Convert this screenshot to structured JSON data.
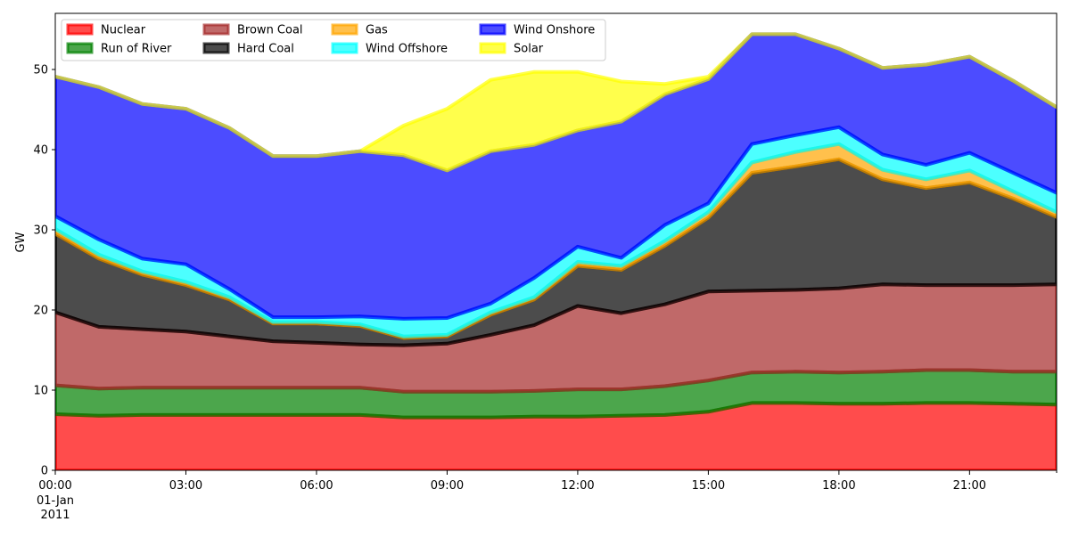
{
  "chart_data": {
    "type": "area",
    "stacked": true,
    "ylabel": "GW",
    "xlabel": "",
    "ylim": [
      0,
      57
    ],
    "y_ticks": [
      0,
      10,
      20,
      30,
      40,
      50
    ],
    "xlim": [
      0,
      23
    ],
    "x": [
      0,
      1,
      2,
      3,
      4,
      5,
      6,
      7,
      8,
      9,
      10,
      11,
      12,
      13,
      14,
      15,
      16,
      17,
      18,
      19,
      20,
      21,
      22,
      23
    ],
    "x_tick_positions": [
      0,
      3,
      6,
      9,
      12,
      15,
      18,
      21
    ],
    "x_tick_labels": [
      "00:00",
      "03:00",
      "06:00",
      "09:00",
      "12:00",
      "15:00",
      "18:00",
      "21:00"
    ],
    "x_date_line1": "01-Jan",
    "x_date_line2": "2011",
    "grid": false,
    "legend": {
      "placement": "top-left",
      "columns": 4
    },
    "series": [
      {
        "name": "Nuclear",
        "color": "#ff0000",
        "values": [
          7.0,
          6.8,
          6.9,
          6.9,
          6.9,
          6.9,
          6.9,
          6.9,
          6.6,
          6.6,
          6.6,
          6.7,
          6.7,
          6.8,
          6.9,
          7.3,
          8.4,
          8.4,
          8.3,
          8.3,
          8.4,
          8.4,
          8.3,
          8.2
        ]
      },
      {
        "name": "Run of River",
        "color": "#008000",
        "values": [
          3.6,
          3.4,
          3.4,
          3.4,
          3.4,
          3.4,
          3.4,
          3.4,
          3.2,
          3.2,
          3.2,
          3.2,
          3.4,
          3.3,
          3.6,
          3.9,
          3.8,
          3.9,
          3.9,
          4.0,
          4.1,
          4.1,
          4.0,
          4.1
        ]
      },
      {
        "name": "Brown Coal",
        "color": "#a52a2a",
        "values": [
          9.1,
          7.7,
          7.3,
          7.0,
          6.4,
          5.8,
          5.6,
          5.4,
          5.8,
          6.0,
          7.1,
          8.2,
          10.4,
          9.5,
          10.2,
          11.1,
          10.2,
          10.2,
          10.5,
          10.9,
          10.6,
          10.6,
          10.8,
          10.9
        ]
      },
      {
        "name": "Hard Coal",
        "color": "#000000",
        "values": [
          9.8,
          8.5,
          6.8,
          5.8,
          4.6,
          2.2,
          2.4,
          2.3,
          0.9,
          0.9,
          2.5,
          3.2,
          5.0,
          5.4,
          7.3,
          9.2,
          14.7,
          15.4,
          16.1,
          13.1,
          12.1,
          12.8,
          10.8,
          8.4
        ]
      },
      {
        "name": "Gas",
        "color": "#ffa500",
        "values": [
          0.6,
          0.5,
          0.4,
          0.4,
          0.3,
          0.2,
          0.2,
          0.2,
          0.2,
          0.2,
          0.3,
          0.3,
          0.5,
          0.5,
          0.6,
          0.7,
          1.3,
          1.8,
          1.9,
          1.2,
          1.1,
          1.5,
          0.9,
          0.6
        ]
      },
      {
        "name": "Wind Offshore",
        "color": "#00ffff",
        "values": [
          1.6,
          1.9,
          1.6,
          2.2,
          1.0,
          0.6,
          0.6,
          1.0,
          2.2,
          2.1,
          1.1,
          2.4,
          1.9,
          1.0,
          2.0,
          1.1,
          2.3,
          2.1,
          2.1,
          1.9,
          1.8,
          2.2,
          2.3,
          2.4
        ]
      },
      {
        "name": "Wind Onshore",
        "color": "#0000ff",
        "values": [
          17.4,
          19.0,
          19.3,
          19.4,
          20.1,
          20.1,
          20.1,
          20.6,
          20.4,
          18.4,
          19.0,
          16.6,
          14.5,
          17.0,
          16.3,
          15.5,
          13.7,
          12.6,
          9.8,
          10.8,
          12.5,
          12.0,
          11.5,
          10.7
        ]
      },
      {
        "name": "Solar",
        "color": "#ffff00",
        "values": [
          0.0,
          0.0,
          0.0,
          0.0,
          0.0,
          0.0,
          0.0,
          0.0,
          3.7,
          7.7,
          8.9,
          9.1,
          7.3,
          5.0,
          1.3,
          0.3,
          0.0,
          0.0,
          0.0,
          0.0,
          0.0,
          0.0,
          0.0,
          0.0
        ]
      }
    ]
  }
}
